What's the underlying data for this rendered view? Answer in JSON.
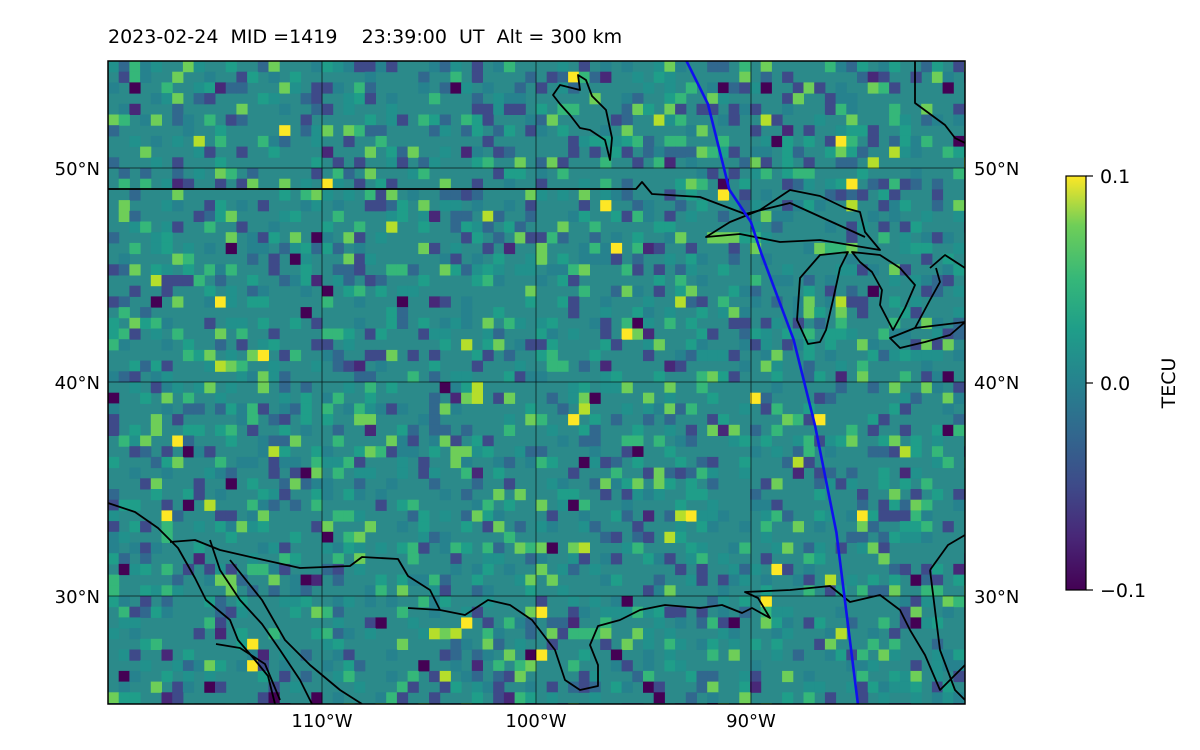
{
  "title": "2023-02-24  MID =1419    23:39:00  UT  Alt = 300 km",
  "map": {
    "projection": "plate-carree",
    "lon_range": [
      -120,
      -80
    ],
    "lat_range": [
      25,
      55
    ],
    "gridlines": true,
    "field": "TEC differential (TECU)",
    "colormap": "viridis",
    "value_range": [
      -0.1,
      0.1
    ],
    "lat_ticks": [
      "50°N",
      "40°N",
      "30°N"
    ],
    "lon_ticks": [
      "110°W",
      "100°W",
      "90°W"
    ],
    "overlay_line_color": "#1010ee",
    "overlay_line": [
      [
        -93.0,
        55.0
      ],
      [
        -92.0,
        53.0
      ],
      [
        -91.0,
        49.0
      ],
      [
        -90.0,
        47.5
      ],
      [
        -89.5,
        46.0
      ],
      [
        -88.0,
        42.0
      ],
      [
        -87.0,
        38.0
      ],
      [
        -86.0,
        33.0
      ],
      [
        -85.0,
        25.0
      ]
    ]
  },
  "colorbar": {
    "label": "TECU",
    "tick_labels": [
      "0.1",
      "0.0",
      "−0.1"
    ],
    "ticks": [
      0.1,
      0.0,
      -0.1
    ]
  }
}
